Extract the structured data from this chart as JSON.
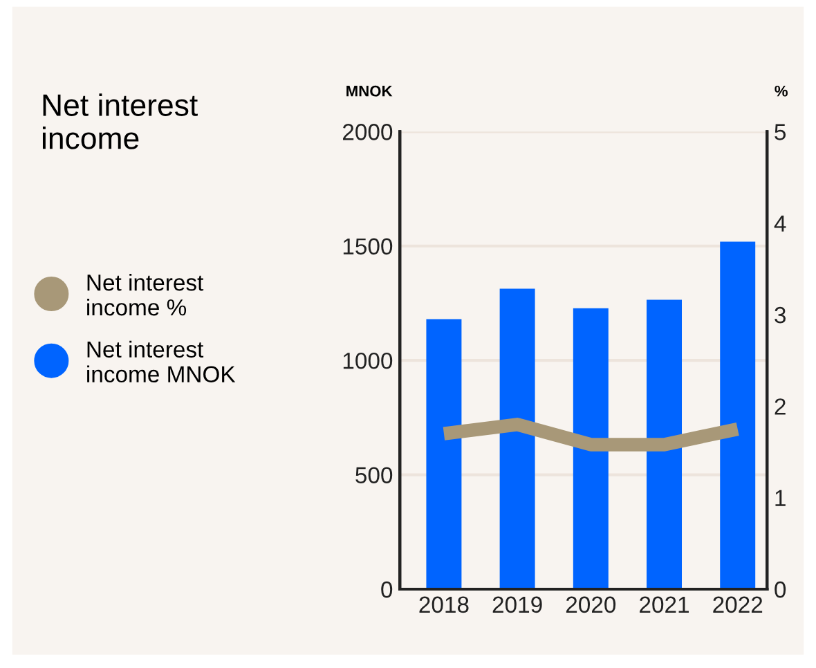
{
  "chart_data": {
    "type": "bar",
    "title": "Net interest income",
    "ylabel": "MNOK",
    "y2label": "%",
    "categories": [
      "2018",
      "2019",
      "2020",
      "2021",
      "2022"
    ],
    "series": [
      {
        "name": "Net interest income %",
        "type": "line",
        "axis": "y2",
        "color": "#a89878",
        "values": [
          1.7,
          1.8,
          1.58,
          1.58,
          1.75
        ]
      },
      {
        "name": "Net interest income MNOK",
        "color": "#0064ff",
        "values": [
          1180,
          1313,
          1228,
          1265,
          1519
        ]
      }
    ],
    "ylim": [
      0,
      2000
    ],
    "yticks": [
      0,
      500,
      1000,
      1500,
      2000
    ],
    "y2lim": [
      0,
      5
    ],
    "y2ticks": [
      0,
      1,
      2,
      3,
      4,
      5
    ],
    "grid": "y",
    "legend": "left",
    "marker": "none"
  }
}
